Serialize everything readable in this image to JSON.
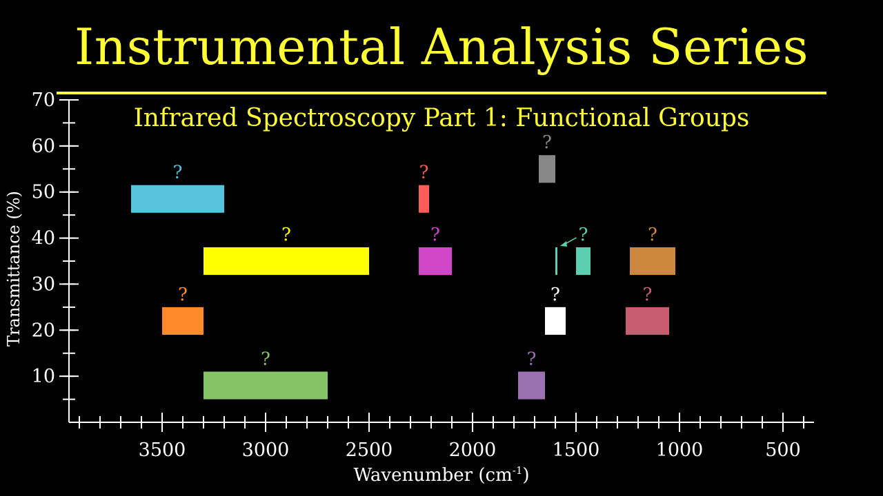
{
  "header": {
    "title": "Instrumental Analysis Series",
    "subtitle": "Infrared Spectroscopy Part 1: Functional Groups"
  },
  "chart_data": {
    "type": "bar",
    "xlabel": "Wavenumber (cm",
    "xlabel_sup": "-1",
    "xlabel_close": ")",
    "ylabel": "Transmittance (%)",
    "xlim": [
      3950,
      350
    ],
    "ylim": [
      0,
      70
    ],
    "xticks_major": [
      3500,
      3000,
      2500,
      2000,
      1500,
      1000,
      500
    ],
    "xtick_labels": [
      "3500",
      "3000",
      "2500",
      "2000",
      "1500",
      "1000",
      "500"
    ],
    "yticks_major": [
      10,
      20,
      30,
      40,
      50,
      60,
      70
    ],
    "ytick_labels": [
      "10",
      "20",
      "30",
      "40",
      "50",
      "60",
      "70"
    ],
    "grid": false,
    "colors": {
      "background": "#000000",
      "axis": "#ffffff",
      "title": "#ffff33"
    },
    "bands": [
      {
        "x_from": 3650,
        "x_to": 3200,
        "y_center": 48.5,
        "color": "#56c2dc",
        "label": "?"
      },
      {
        "x_from": 3300,
        "x_to": 2500,
        "y_center": 35.0,
        "color": "#ffff00",
        "label": "?"
      },
      {
        "x_from": 3500,
        "x_to": 3300,
        "y_center": 22.0,
        "color": "#ff8a2b",
        "label": "?"
      },
      {
        "x_from": 3300,
        "x_to": 2700,
        "y_center": 8.0,
        "color": "#86c366",
        "label": "?"
      },
      {
        "x_from": 2260,
        "x_to": 2210,
        "y_center": 48.5,
        "color": "#fa5e56",
        "label": "?"
      },
      {
        "x_from": 2260,
        "x_to": 2100,
        "y_center": 35.0,
        "color": "#d146c6",
        "label": "?"
      },
      {
        "x_from": 1680,
        "x_to": 1600,
        "y_center": 55.0,
        "color": "#888888",
        "label": "?"
      },
      {
        "x_from": 1650,
        "x_to": 1550,
        "y_center": 22.0,
        "color": "#ffffff",
        "label": "?"
      },
      {
        "x_from": 1780,
        "x_to": 1650,
        "y_center": 8.0,
        "color": "#9a72b0",
        "label": "?"
      },
      {
        "x_from": 1600,
        "x_to": 1590,
        "y_center": 35.0,
        "color": "#5ccfb0",
        "label": ""
      },
      {
        "x_from": 1500,
        "x_to": 1430,
        "y_center": 35.0,
        "color": "#5ccfb0",
        "label": "?"
      },
      {
        "x_from": 1240,
        "x_to": 1020,
        "y_center": 35.0,
        "color": "#cd8840",
        "label": "?"
      },
      {
        "x_from": 1260,
        "x_to": 1050,
        "y_center": 22.0,
        "color": "#c85d72",
        "label": "?"
      }
    ],
    "band_height": 6.0
  }
}
